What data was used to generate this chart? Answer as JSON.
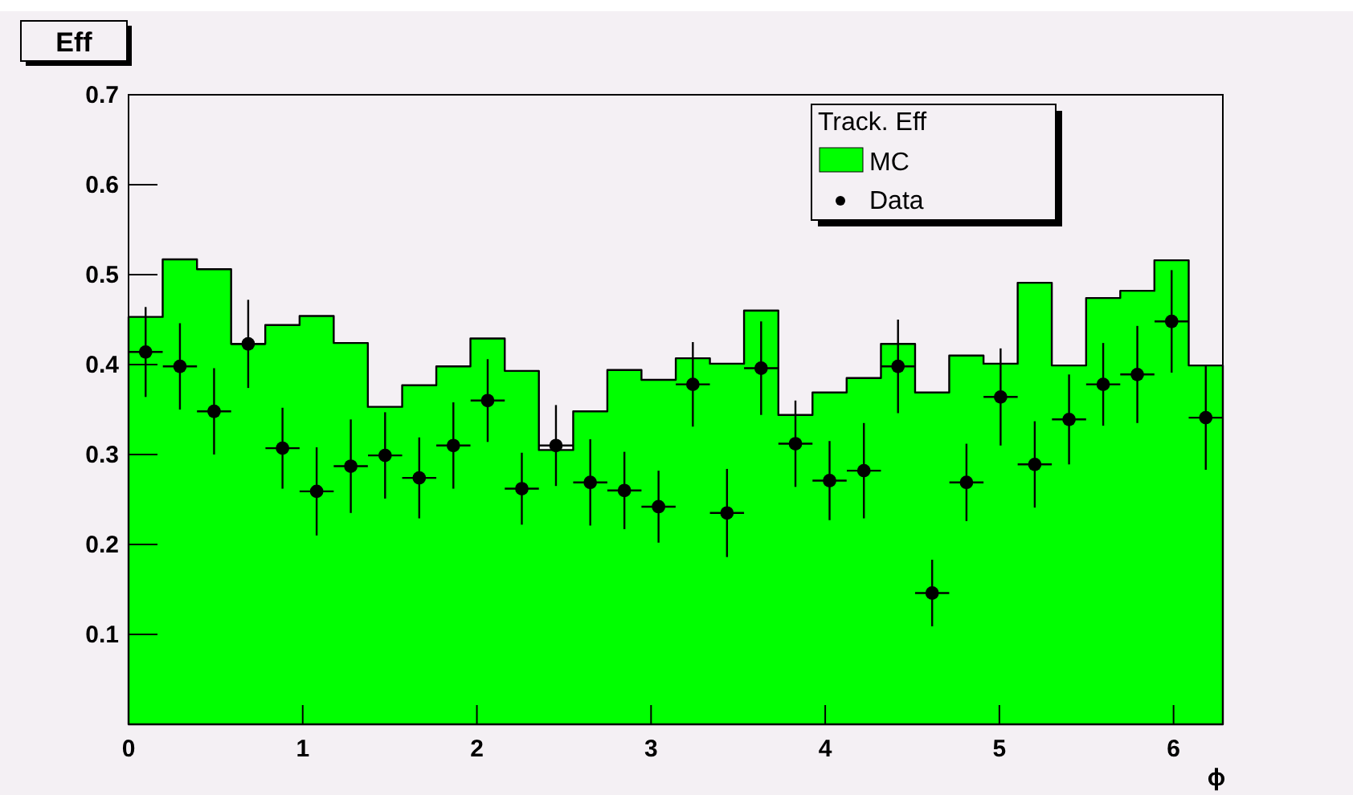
{
  "chart_data": {
    "type": "histogram",
    "title": "Eff",
    "xlabel": "ϕ",
    "legend_title": "Track. Eff",
    "legend": "top right",
    "grid": false,
    "marker": "circle",
    "bins": [
      0,
      0.196,
      0.393,
      0.589,
      0.785,
      0.982,
      1.178,
      1.374,
      1.571,
      1.767,
      1.963,
      2.16,
      2.356,
      2.553,
      2.749,
      2.945,
      3.142,
      3.338,
      3.534,
      3.731,
      3.927,
      4.123,
      4.32,
      4.516,
      4.712,
      4.909,
      5.105,
      5.301,
      5.498,
      5.694,
      5.89,
      6.087,
      6.283
    ],
    "xlim": [
      0,
      6.283
    ],
    "xticks": [
      0,
      1,
      2,
      3,
      4,
      5,
      6
    ],
    "ylim": [
      0,
      0.7
    ],
    "yticks": [
      0.1,
      0.2,
      0.3,
      0.4,
      0.5,
      0.6,
      0.7
    ],
    "series": [
      {
        "name": "MC",
        "color": "#00ff00",
        "values": [
          0.453,
          0.517,
          0.506,
          0.423,
          0.444,
          0.454,
          0.424,
          0.353,
          0.377,
          0.398,
          0.429,
          0.393,
          0.305,
          0.348,
          0.394,
          0.383,
          0.407,
          0.401,
          0.46,
          0.344,
          0.369,
          0.385,
          0.423,
          0.369,
          0.41,
          0.401,
          0.491,
          0.399,
          0.474,
          0.482,
          0.516,
          0.399
        ]
      },
      {
        "name": "Data",
        "type": "scatter",
        "color": "#000000",
        "x": [
          0.098,
          0.295,
          0.491,
          0.687,
          0.884,
          1.08,
          1.276,
          1.473,
          1.669,
          1.865,
          2.062,
          2.258,
          2.454,
          2.651,
          2.847,
          3.043,
          3.24,
          3.436,
          3.632,
          3.829,
          4.025,
          4.222,
          4.418,
          4.614,
          4.811,
          5.007,
          5.203,
          5.4,
          5.596,
          5.792,
          5.989,
          6.185
        ],
        "values": [
          0.414,
          0.398,
          0.348,
          0.423,
          0.307,
          0.259,
          0.287,
          0.299,
          0.274,
          0.31,
          0.36,
          0.262,
          0.31,
          0.269,
          0.26,
          0.242,
          0.378,
          0.235,
          0.396,
          0.312,
          0.271,
          0.282,
          0.398,
          0.146,
          0.269,
          0.364,
          0.289,
          0.339,
          0.378,
          0.389,
          0.448,
          0.341
        ],
        "errors": [
          0.05,
          0.048,
          0.048,
          0.049,
          0.045,
          0.049,
          0.052,
          0.048,
          0.045,
          0.048,
          0.046,
          0.04,
          0.045,
          0.048,
          0.043,
          0.04,
          0.047,
          0.049,
          0.052,
          0.048,
          0.044,
          0.053,
          0.052,
          0.037,
          0.043,
          0.054,
          0.048,
          0.05,
          0.046,
          0.054,
          0.057,
          0.058
        ],
        "xerrors": [
          0.098,
          0.098,
          0.098,
          0.098,
          0.098,
          0.098,
          0.098,
          0.098,
          0.098,
          0.098,
          0.098,
          0.098,
          0.098,
          0.098,
          0.098,
          0.098,
          0.098,
          0.098,
          0.098,
          0.098,
          0.098,
          0.098,
          0.098,
          0.098,
          0.098,
          0.098,
          0.098,
          0.098,
          0.098,
          0.098,
          0.098,
          0.098
        ]
      }
    ]
  }
}
